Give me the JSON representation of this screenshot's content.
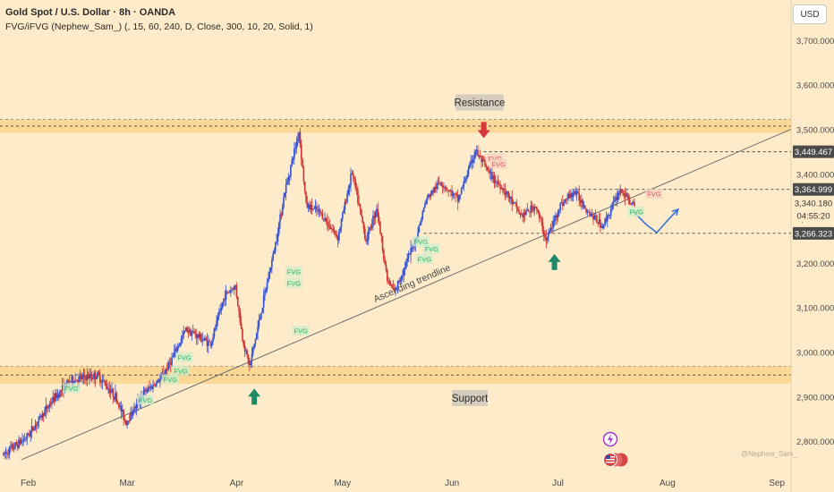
{
  "header": {
    "symbol_line": "Gold Spot / U.S. Dollar · 8h · OANDA",
    "indicator_line": "FVG/iFVG (Nephew_Sam_) (, 15, 60, 240, D, Close, 300, 10, 20, Solid, 1)"
  },
  "currency_button": "USD",
  "watermark": "@Nephew_Sam_",
  "colors": {
    "background": "#fdebc9",
    "zone_fill": "#fbd38a",
    "bull": "#2f4fd8",
    "bear": "#cf3131",
    "trendline": "#6d6d6d",
    "arrow_green": "#1f8a6a",
    "arrow_red": "#d9363e",
    "fvg_green": "#28b463",
    "fvg_red": "#e05555",
    "projection": "#3b73d9"
  },
  "icons": [
    "flash-icon",
    "flag-icon"
  ],
  "chart_data": {
    "type": "candlestick",
    "title": "Gold Spot / U.S. Dollar · 8h · OANDA",
    "ylim": [
      2730,
      3790
    ],
    "y_ticks": [
      "3,700.000",
      "3,600.000",
      "3,500.000",
      "3,400.000",
      "3,300.000",
      "3,200.000",
      "3,100.000",
      "3,000.000",
      "2,900.000",
      "2,800.000"
    ],
    "y_tick_values": [
      3700,
      3600,
      3500,
      3400,
      3300,
      3200,
      3100,
      3000,
      2900,
      2800
    ],
    "x_ticks": [
      "Feb",
      "Mar",
      "Apr",
      "May",
      "Jun",
      "Jul",
      "Aug",
      "Sep"
    ],
    "x_tick_days": [
      0,
      28,
      59,
      89,
      120,
      150,
      181,
      212
    ],
    "xlim_days": [
      -8,
      216
    ],
    "price_labels": [
      {
        "value": 3449.467,
        "text": "3,449.467",
        "style": "dark"
      },
      {
        "value": 3364.999,
        "text": "3,364.999",
        "style": "dark"
      },
      {
        "value": 3340.18,
        "text": "3,340.180",
        "style": "light"
      },
      {
        "text": "04:55:20",
        "style": "light"
      },
      {
        "value": 3266.323,
        "text": "3,266.323",
        "style": "dark"
      }
    ],
    "dashed_levels": [
      3449.467,
      3364.999,
      3266.323
    ],
    "zones": [
      {
        "label": "Resistance",
        "from": 3492,
        "to": 3522
      },
      {
        "label": "Support",
        "from": 2929,
        "to": 2968
      }
    ],
    "trendline": {
      "label": "Ascending trendline",
      "start": {
        "day": -2,
        "price": 2758
      },
      "end": {
        "day": 216,
        "price": 3500
      }
    },
    "path_points": [
      {
        "day": -7,
        "price": 2768
      },
      {
        "day": 0,
        "price": 2810
      },
      {
        "day": 7,
        "price": 2890
      },
      {
        "day": 12,
        "price": 2935
      },
      {
        "day": 20,
        "price": 2948
      },
      {
        "day": 25,
        "price": 2900
      },
      {
        "day": 28,
        "price": 2842
      },
      {
        "day": 33,
        "price": 2908
      },
      {
        "day": 38,
        "price": 2940
      },
      {
        "day": 42,
        "price": 3000
      },
      {
        "day": 45,
        "price": 3052
      },
      {
        "day": 52,
        "price": 3018
      },
      {
        "day": 56,
        "price": 3128
      },
      {
        "day": 59,
        "price": 3148
      },
      {
        "day": 61,
        "price": 3030
      },
      {
        "day": 63,
        "price": 2968
      },
      {
        "day": 66,
        "price": 3080
      },
      {
        "day": 70,
        "price": 3230
      },
      {
        "day": 73,
        "price": 3360
      },
      {
        "day": 77,
        "price": 3495
      },
      {
        "day": 79,
        "price": 3330
      },
      {
        "day": 83,
        "price": 3312
      },
      {
        "day": 88,
        "price": 3258
      },
      {
        "day": 92,
        "price": 3405
      },
      {
        "day": 96,
        "price": 3250
      },
      {
        "day": 99,
        "price": 3325
      },
      {
        "day": 102,
        "price": 3162
      },
      {
        "day": 104,
        "price": 3134
      },
      {
        "day": 110,
        "price": 3252
      },
      {
        "day": 113,
        "price": 3342
      },
      {
        "day": 117,
        "price": 3382
      },
      {
        "day": 122,
        "price": 3342
      },
      {
        "day": 127,
        "price": 3452
      },
      {
        "day": 131,
        "price": 3398
      },
      {
        "day": 135,
        "price": 3365
      },
      {
        "day": 140,
        "price": 3305
      },
      {
        "day": 144,
        "price": 3328
      },
      {
        "day": 147,
        "price": 3250
      },
      {
        "day": 151,
        "price": 3330
      },
      {
        "day": 155,
        "price": 3360
      },
      {
        "day": 159,
        "price": 3315
      },
      {
        "day": 163,
        "price": 3282
      },
      {
        "day": 168,
        "price": 3365
      },
      {
        "day": 172,
        "price": 3325
      }
    ],
    "fvg_labels": [
      {
        "day": 10,
        "price": 2916,
        "kind": "bull"
      },
      {
        "day": 31,
        "price": 2890,
        "kind": "bull"
      },
      {
        "day": 38,
        "price": 2936,
        "kind": "bull"
      },
      {
        "day": 41,
        "price": 2955,
        "kind": "bull"
      },
      {
        "day": 42,
        "price": 2985,
        "kind": "bull"
      },
      {
        "day": 73,
        "price": 3178,
        "kind": "bull"
      },
      {
        "day": 73,
        "price": 3152,
        "kind": "bull"
      },
      {
        "day": 75,
        "price": 3045,
        "kind": "bull"
      },
      {
        "day": 109,
        "price": 3245,
        "kind": "bull"
      },
      {
        "day": 112,
        "price": 3229,
        "kind": "bull"
      },
      {
        "day": 110,
        "price": 3206,
        "kind": "bull"
      },
      {
        "day": 130,
        "price": 3432,
        "kind": "bear"
      },
      {
        "day": 131,
        "price": 3419,
        "kind": "bear"
      },
      {
        "day": 175,
        "price": 3352,
        "kind": "bear"
      },
      {
        "day": 170,
        "price": 3312,
        "kind": "bull"
      }
    ],
    "arrows": [
      {
        "day": 64,
        "price": 2918,
        "direction": "up",
        "color": "green"
      },
      {
        "day": 149,
        "price": 3220,
        "direction": "up",
        "color": "green"
      },
      {
        "day": 129,
        "price": 3480,
        "direction": "down",
        "color": "red"
      }
    ],
    "projection": [
      {
        "day": 171,
        "price": 3318
      },
      {
        "day": 175,
        "price": 3286
      },
      {
        "day": 178,
        "price": 3268
      },
      {
        "day": 181,
        "price": 3295
      },
      {
        "day": 184,
        "price": 3320
      }
    ]
  }
}
